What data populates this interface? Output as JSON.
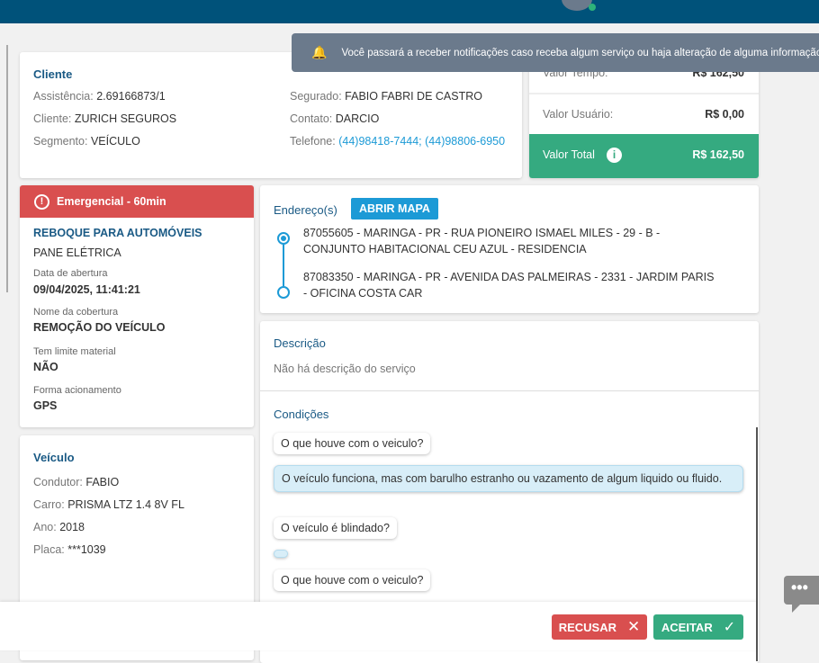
{
  "toast": {
    "icon": "bell-icon",
    "message": "Você passará a receber notificações caso receba algum serviço ou haja alteração de alguma informação"
  },
  "cliente": {
    "title": "Cliente",
    "assistencia_label": "Assistência:",
    "assistencia": "2.69166873/1",
    "cliente_label": "Cliente:",
    "cliente": "ZURICH SEGUROS",
    "segmento_label": "Segmento:",
    "segmento": "VEÍCULO",
    "segurado_label": "Segurado:",
    "segurado": "FABIO FABRI DE CASTRO",
    "contato_label": "Contato:",
    "contato": "DARCIO",
    "telefone_label": "Telefone:",
    "telefone": "(44)98418-7444; (44)98806-6950"
  },
  "valores": {
    "tempo_label": "Valor Tempo:",
    "tempo": "R$ 162,50",
    "usuario_label": "Valor Usuário:",
    "usuario": "R$ 0,00",
    "total_label": "Valor Total",
    "total": "R$ 162,50"
  },
  "servico": {
    "badge": "Emergencial - 60min",
    "tipo": "REBOQUE PARA AUTOMÓVEIS",
    "problema": "PANE ELÉTRICA",
    "abertura_label": "Data de abertura",
    "abertura": "09/04/2025, 11:41:21",
    "cobertura_label": "Nome da cobertura",
    "cobertura": "REMOÇÃO DO VEÍCULO",
    "limite_label": "Tem limite material",
    "limite": "NÃO",
    "acionamento_label": "Forma acionamento",
    "acionamento": "GPS"
  },
  "veiculo": {
    "title": "Veículo",
    "condutor_label": "Condutor:",
    "condutor": "FABIO",
    "carro_label": "Carro:",
    "carro": "PRISMA LTZ 1.4 8V FL",
    "ano_label": "Ano:",
    "ano": "2018",
    "placa_label": "Placa:",
    "placa": "***1039"
  },
  "enderecos": {
    "title": "Endereço(s)",
    "map_button": "ABRIR MAPA",
    "items": [
      "87055605 - MARINGA - PR - RUA PIONEIRO ISMAEL MILES - 29 - B - CONJUNTO HABITACIONAL CEU AZUL - RESIDENCIA",
      "87083350 - MARINGA - PR - AVENIDA DAS PALMEIRAS - 2331 - JARDIM PARIS - OFICINA COSTA CAR"
    ]
  },
  "descricao": {
    "title": "Descrição",
    "text": "Não há descrição do serviço"
  },
  "condicoes": {
    "title": "Condições",
    "items": [
      {
        "q": "O que houve com o veiculo?",
        "a": "O veículo funciona, mas com barulho estranho ou vazamento de algum liquido ou fluido."
      },
      {
        "q": "O veículo é blindado?",
        "a": ""
      },
      {
        "q": "O que houve com o veiculo?"
      }
    ]
  },
  "footer": {
    "refuse": "RECUSAR",
    "accept": "ACEITAR"
  },
  "colors": {
    "header": "#00527a",
    "green": "#35aa80",
    "red": "#d94f4f",
    "accent": "#1c9ad6"
  }
}
